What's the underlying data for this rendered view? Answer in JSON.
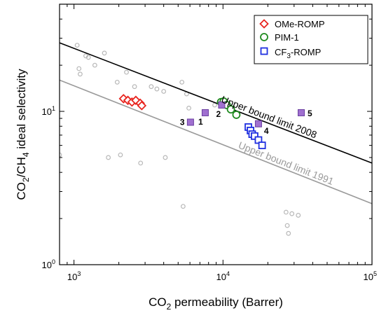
{
  "chart_data": {
    "type": "scatter",
    "xscale": "log",
    "yscale": "log",
    "xlim": [
      800,
      100000
    ],
    "ylim": [
      1,
      50
    ],
    "xticks": [
      {
        "value": 1000,
        "mant": "10",
        "exp": "3"
      },
      {
        "value": 10000,
        "mant": "10",
        "exp": "4"
      },
      {
        "value": 100000,
        "mant": "10",
        "exp": "5"
      }
    ],
    "yticks": [
      {
        "value": 1,
        "mant": "10",
        "exp": "0"
      },
      {
        "value": 10,
        "mant": "10",
        "exp": "1"
      }
    ],
    "xlabel": {
      "pre": "CO",
      "sub": "2",
      "post": " permeability (Barrer)"
    },
    "ylabel": {
      "p1": "CO",
      "s1": "2",
      "p2": "/CH",
      "s2": "4",
      "p3": " ideal selectivity"
    },
    "grid": false,
    "legend_position": "top-right",
    "series": [
      {
        "name": {
          "pre": "OMe-ROMP"
        },
        "marker": "diamond",
        "color": "#e8251f",
        "points": [
          [
            2150,
            12.1
          ],
          [
            2300,
            11.8
          ],
          [
            2450,
            11.5
          ],
          [
            2600,
            11.8
          ],
          [
            2780,
            11.3
          ],
          [
            2850,
            10.9
          ]
        ]
      },
      {
        "name": {
          "pre": "PIM-1"
        },
        "marker": "circle",
        "color": "#1f8a1f",
        "points": [
          [
            9700,
            11.5
          ],
          [
            10100,
            11.6
          ],
          [
            10600,
            11.0
          ],
          [
            11300,
            10.3
          ],
          [
            12300,
            9.5
          ]
        ]
      },
      {
        "name": {
          "pre": "CF",
          "sub": "3",
          "post": "-ROMP"
        },
        "marker": "square",
        "color": "#1f2fe0",
        "points": [
          [
            14800,
            7.9
          ],
          [
            15300,
            7.5
          ],
          [
            15700,
            7.1
          ],
          [
            16300,
            6.9
          ],
          [
            17300,
            6.5
          ],
          [
            18300,
            6.0
          ]
        ]
      }
    ],
    "labeled_points": [
      {
        "label": "1",
        "x": 7600,
        "y": 9.8
      },
      {
        "label": "2",
        "x": 9800,
        "y": 11.0
      },
      {
        "label": "3",
        "x": 6050,
        "y": 8.5
      },
      {
        "label": "4",
        "x": 17300,
        "y": 8.3
      },
      {
        "label": "5",
        "x": 33500,
        "y": 9.8
      }
    ],
    "background_points": [
      [
        800,
        5.2
      ],
      [
        1050,
        27
      ],
      [
        1080,
        19
      ],
      [
        1100,
        17.5
      ],
      [
        1200,
        23
      ],
      [
        1250,
        22.5
      ],
      [
        1380,
        20
      ],
      [
        1600,
        24
      ],
      [
        1700,
        5
      ],
      [
        1950,
        15.5
      ],
      [
        2050,
        5.2
      ],
      [
        2250,
        18
      ],
      [
        2550,
        14.5
      ],
      [
        2800,
        4.6
      ],
      [
        3300,
        14.5
      ],
      [
        3600,
        14
      ],
      [
        4000,
        13.5
      ],
      [
        4100,
        5
      ],
      [
        5300,
        15.5
      ],
      [
        5400,
        2.4
      ],
      [
        5700,
        13
      ],
      [
        5900,
        10.5
      ],
      [
        8800,
        11
      ],
      [
        26500,
        2.2
      ],
      [
        27000,
        1.8
      ],
      [
        27500,
        1.6
      ],
      [
        29000,
        2.15
      ],
      [
        32000,
        2.1
      ]
    ],
    "upper_bounds": [
      {
        "label": "Upper bound limit 2008",
        "x1": 800,
        "y1": 28,
        "x2": 100000,
        "y2": 4.6,
        "color": "#000000"
      },
      {
        "label": "Upper bound limit 1991",
        "x1": 800,
        "y1": 16,
        "x2": 100000,
        "y2": 2.5,
        "color": "#9a9a9a"
      }
    ]
  }
}
